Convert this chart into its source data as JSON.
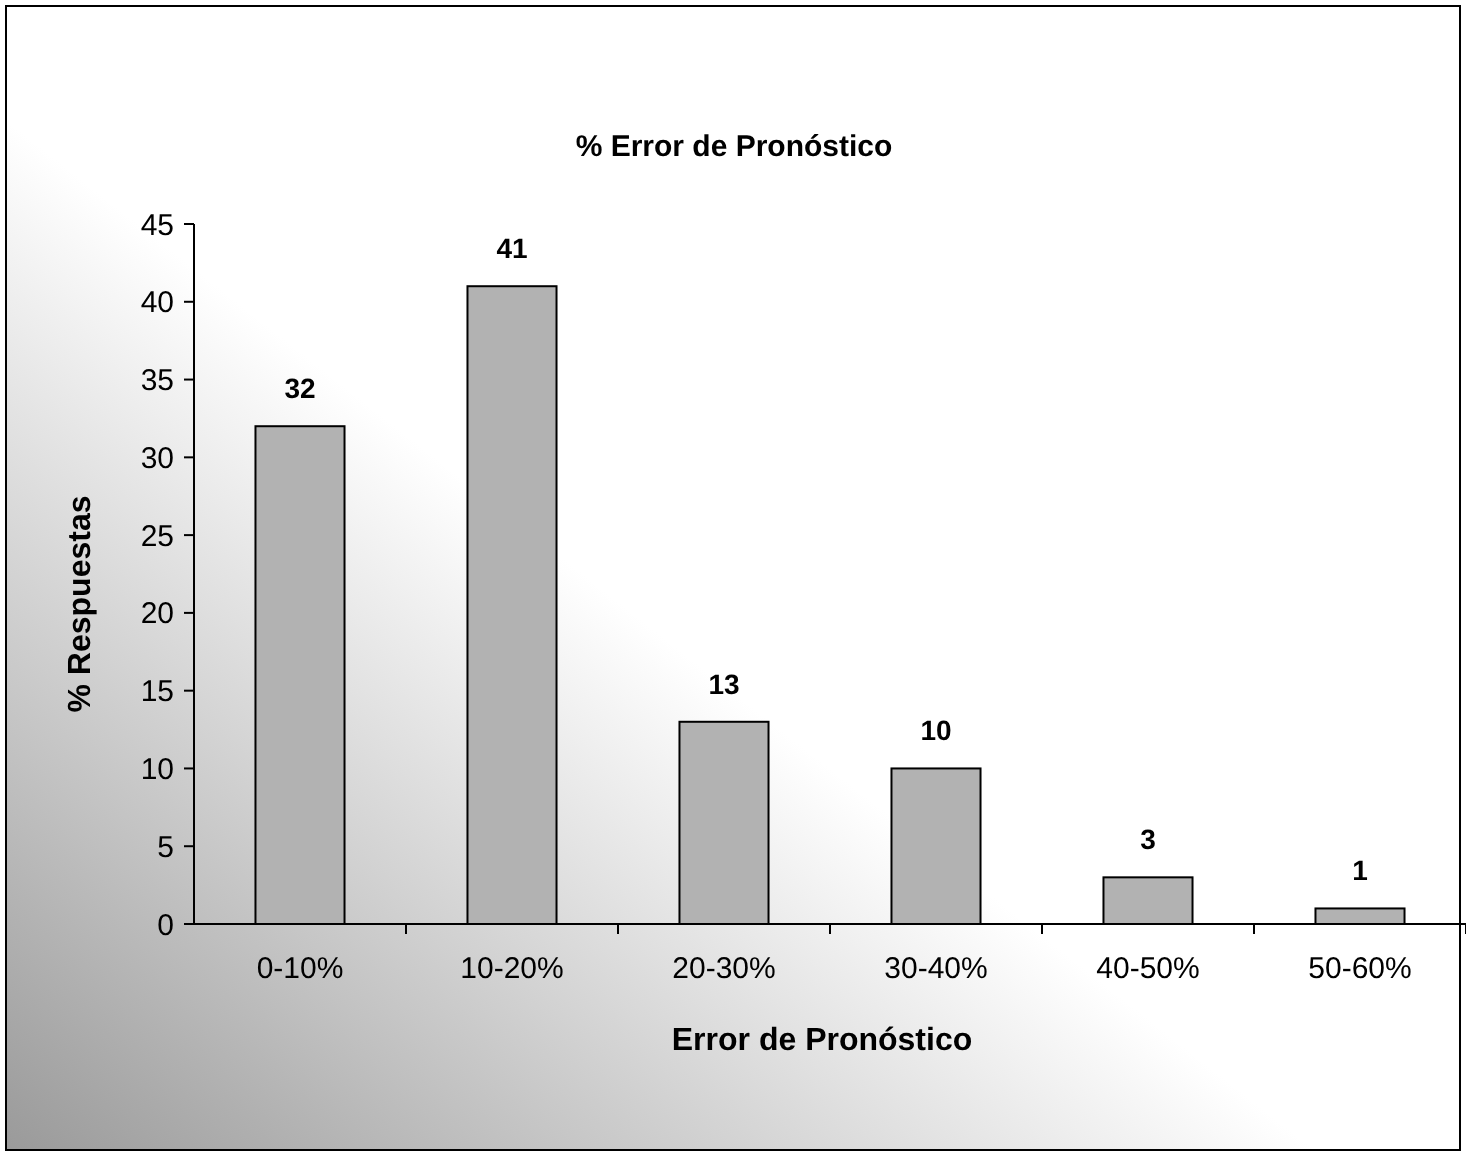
{
  "chart_data": {
    "type": "bar",
    "title": "% Error de Pronóstico",
    "xlabel": "Error de Pronóstico",
    "ylabel": "% Respuestas",
    "categories": [
      "0-10%",
      "10-20%",
      "20-30%",
      "30-40%",
      "40-50%",
      "50-60%"
    ],
    "values": [
      32,
      41,
      13,
      10,
      3,
      1
    ],
    "color": "#b2b2b2",
    "ylim": [
      0,
      45
    ],
    "yticks": [
      0,
      5,
      10,
      15,
      20,
      25,
      30,
      35,
      40,
      45
    ],
    "grid": false,
    "data_labels": true
  }
}
